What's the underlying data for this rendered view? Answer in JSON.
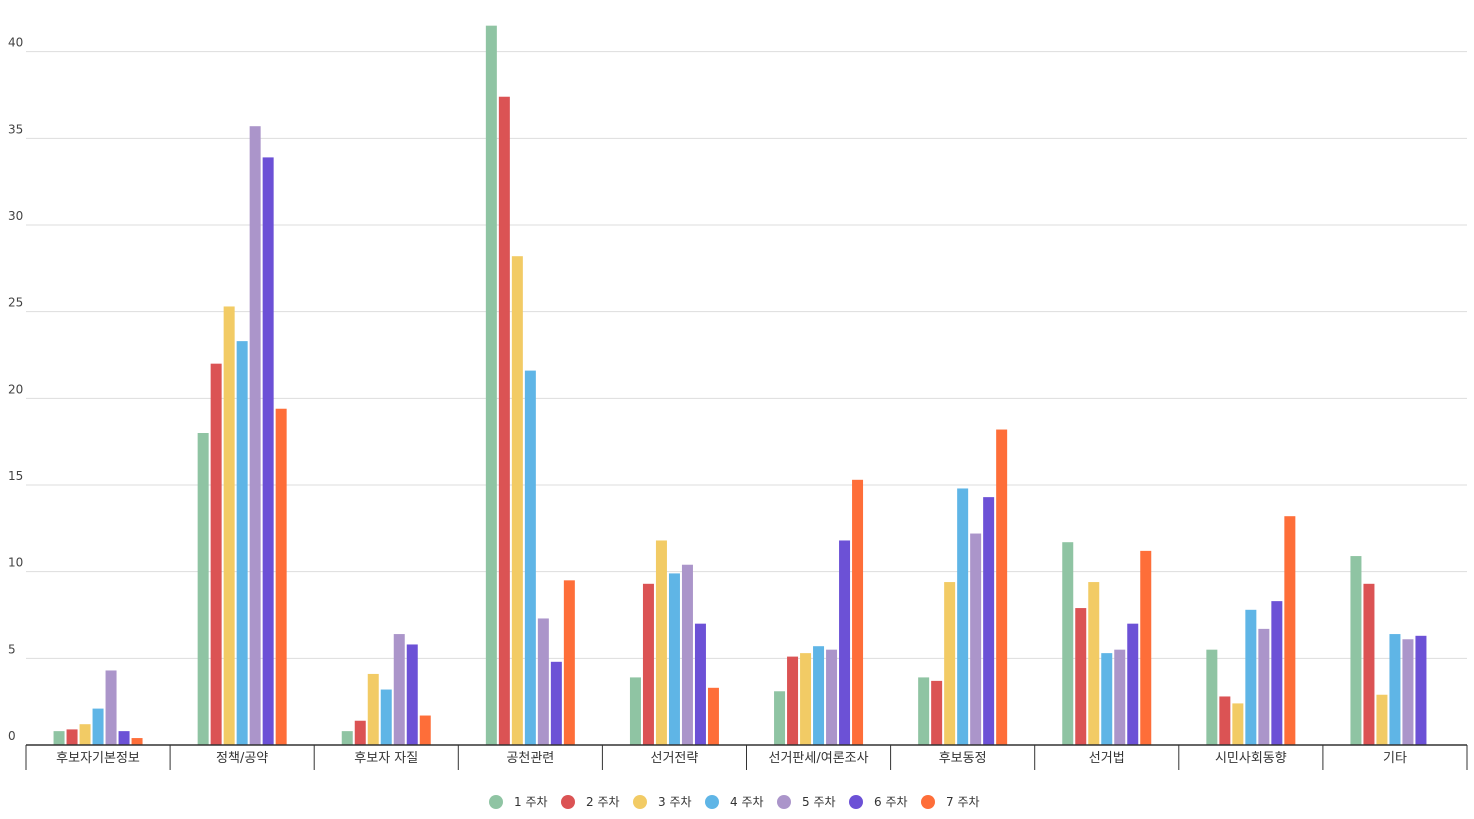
{
  "chart_data": {
    "type": "bar",
    "title": "",
    "xlabel": "",
    "ylabel": "",
    "ylim": [
      0,
      42
    ],
    "yticks": [
      0,
      5,
      10,
      15,
      20,
      25,
      30,
      35,
      40
    ],
    "grid": true,
    "legend_position": "bottom",
    "categories": [
      "후보자기본정보",
      "정책/공약",
      "후보자 자질",
      "공천관련",
      "선거전략",
      "선거판세/여론조사",
      "후보동정",
      "선거법",
      "시민사회동향",
      "기타"
    ],
    "series": [
      {
        "name": "1 주차",
        "color": "#8fc4a3",
        "values": [
          0.8,
          18.0,
          0.8,
          41.5,
          3.9,
          3.1,
          3.9,
          11.7,
          5.5,
          10.9
        ]
      },
      {
        "name": "2 주차",
        "color": "#db5354",
        "values": [
          0.9,
          22.0,
          1.4,
          37.4,
          9.3,
          5.1,
          3.7,
          7.9,
          2.8,
          9.3
        ]
      },
      {
        "name": "3 주차",
        "color": "#f2cb65",
        "values": [
          1.2,
          25.3,
          4.1,
          28.2,
          11.8,
          5.3,
          9.4,
          9.4,
          2.4,
          2.9
        ]
      },
      {
        "name": "4 주차",
        "color": "#5fb5e6",
        "values": [
          2.1,
          23.3,
          3.2,
          21.6,
          9.9,
          5.7,
          14.8,
          5.3,
          7.8,
          6.4
        ]
      },
      {
        "name": "5 주차",
        "color": "#ab95ca",
        "values": [
          4.3,
          35.7,
          6.4,
          7.3,
          10.4,
          5.5,
          12.2,
          5.5,
          6.7,
          6.1
        ]
      },
      {
        "name": "6 주차",
        "color": "#6c51d6",
        "values": [
          0.8,
          33.9,
          5.8,
          4.8,
          7.0,
          11.8,
          14.3,
          7.0,
          8.3,
          6.3
        ]
      },
      {
        "name": "7 주차",
        "color": "#fe6e39",
        "values": [
          0.4,
          19.4,
          1.7,
          9.5,
          3.3,
          15.3,
          18.2,
          11.2,
          13.2,
          null
        ]
      }
    ]
  }
}
